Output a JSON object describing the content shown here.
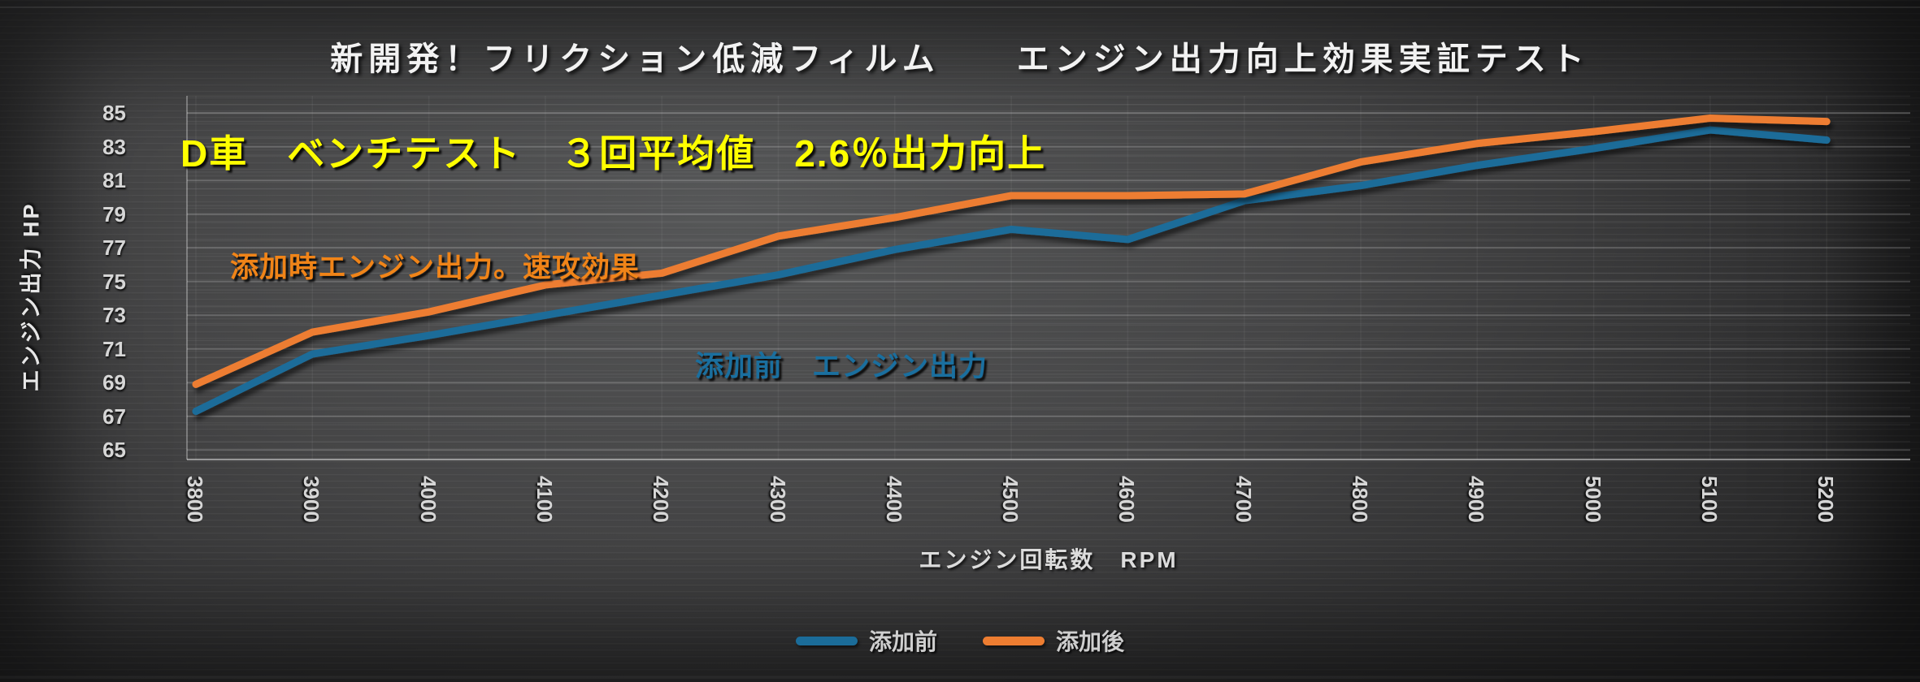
{
  "title": "新開発！フリクション低減フィルム　　エンジン出力向上効果実証テスト",
  "annotations": {
    "claim": {
      "text": "D車　ベンチテスト　３回平均値　2.6％出力向上",
      "color": "#ffff00"
    },
    "after_series_note": {
      "text": "添加時エンジン出力。速攻効果",
      "color": "#f08418"
    },
    "before_series_note": {
      "text": "添加前　エンジン出力",
      "color": "#1a6f9f"
    }
  },
  "chart_data": {
    "type": "line",
    "title": "新開発！フリクション低減フィルム　エンジン出力向上効果実証テスト",
    "x": [
      3800,
      3900,
      4000,
      4100,
      4200,
      4300,
      4400,
      4500,
      4600,
      4700,
      4800,
      4900,
      5000,
      5100,
      5200
    ],
    "xlabel": "エンジン回転数　RPM",
    "ylabel": "エンジン出力 HP",
    "ylim": [
      65,
      85
    ],
    "ytick_step": 2,
    "grid": true,
    "minor_grid_step": 0.5,
    "legend_position": "bottom",
    "series": [
      {
        "name": "添加前",
        "color": "#1b6c99",
        "values": [
          67.3,
          70.7,
          71.8,
          73.0,
          74.2,
          75.4,
          76.9,
          78.1,
          77.5,
          79.8,
          80.7,
          81.9,
          82.9,
          84.0,
          83.4
        ]
      },
      {
        "name": "添加後",
        "color": "#ed7d31",
        "values": [
          68.9,
          72.0,
          73.2,
          74.8,
          75.5,
          77.7,
          78.8,
          80.1,
          80.1,
          80.2,
          82.1,
          83.2,
          83.9,
          84.7,
          84.5
        ]
      }
    ]
  },
  "colors": {
    "before_line": "#1b6c99",
    "after_line": "#ed7d31",
    "claim_text": "#ffff00",
    "tick_text": "#d6d6d6",
    "title_text": "#f2f2f2"
  }
}
